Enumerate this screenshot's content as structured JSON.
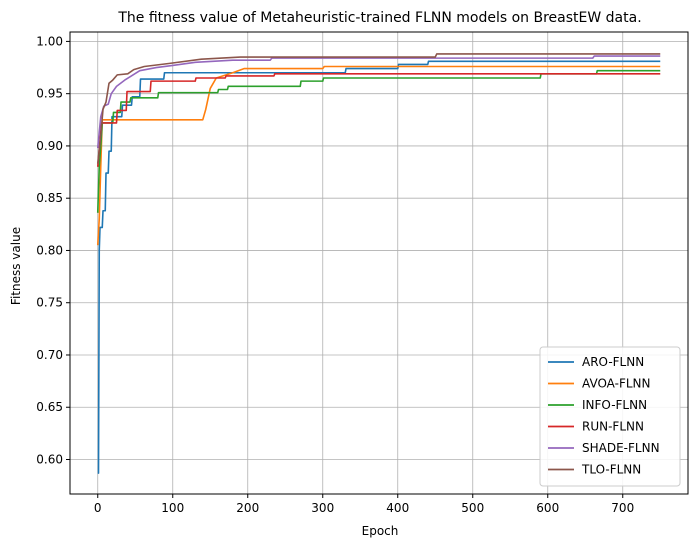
{
  "chart_data": {
    "type": "line",
    "title": "The fitness value of Metaheuristic-trained FLNN models on BreastEW data.",
    "xlabel": "Epoch",
    "ylabel": "Fitness value",
    "xlim": [
      -37,
      787
    ],
    "ylim": [
      0.567,
      1.009
    ],
    "xticks": [
      0,
      100,
      200,
      300,
      400,
      500,
      600,
      700
    ],
    "yticks": [
      0.6,
      0.65,
      0.7,
      0.75,
      0.8,
      0.85,
      0.9,
      0.95,
      1.0
    ],
    "xtick_labels": [
      "0",
      "100",
      "200",
      "300",
      "400",
      "500",
      "600",
      "700"
    ],
    "ytick_labels": [
      "0.60",
      "0.65",
      "0.70",
      "0.75",
      "0.80",
      "0.85",
      "0.90",
      "0.95",
      "1.00"
    ],
    "grid": true,
    "legend_position": "lower-right",
    "series": [
      {
        "name": "ARO-FLNN",
        "color": "#1f77b4",
        "points": [
          [
            0,
            0.587
          ],
          [
            1,
            0.587
          ],
          [
            2,
            0.8
          ],
          [
            3,
            0.822
          ],
          [
            6,
            0.822
          ],
          [
            7,
            0.838
          ],
          [
            10,
            0.838
          ],
          [
            11,
            0.874
          ],
          [
            14,
            0.874
          ],
          [
            15,
            0.895
          ],
          [
            18,
            0.895
          ],
          [
            19,
            0.928
          ],
          [
            32,
            0.928
          ],
          [
            33,
            0.939
          ],
          [
            45,
            0.939
          ],
          [
            46,
            0.947
          ],
          [
            56,
            0.947
          ],
          [
            57,
            0.964
          ],
          [
            88,
            0.964
          ],
          [
            89,
            0.97
          ],
          [
            330,
            0.97
          ],
          [
            331,
            0.974
          ],
          [
            400,
            0.974
          ],
          [
            401,
            0.978
          ],
          [
            440,
            0.978
          ],
          [
            441,
            0.981
          ],
          [
            750,
            0.981
          ]
        ]
      },
      {
        "name": "AVOA-FLNN",
        "color": "#ff7f0e",
        "points": [
          [
            0,
            0.805
          ],
          [
            2,
            0.83
          ],
          [
            4,
            0.88
          ],
          [
            6,
            0.925
          ],
          [
            140,
            0.925
          ],
          [
            144,
            0.935
          ],
          [
            150,
            0.955
          ],
          [
            158,
            0.965
          ],
          [
            180,
            0.97
          ],
          [
            195,
            0.974
          ],
          [
            300,
            0.974
          ],
          [
            302,
            0.976
          ],
          [
            750,
            0.976
          ]
        ]
      },
      {
        "name": "INFO-FLNN",
        "color": "#2ca02c",
        "points": [
          [
            0,
            0.836
          ],
          [
            2,
            0.88
          ],
          [
            4,
            0.9
          ],
          [
            6,
            0.922
          ],
          [
            20,
            0.922
          ],
          [
            21,
            0.932
          ],
          [
            30,
            0.932
          ],
          [
            31,
            0.942
          ],
          [
            43,
            0.942
          ],
          [
            44,
            0.946
          ],
          [
            80,
            0.946
          ],
          [
            81,
            0.951
          ],
          [
            160,
            0.951
          ],
          [
            161,
            0.954
          ],
          [
            173,
            0.954
          ],
          [
            174,
            0.957
          ],
          [
            270,
            0.957
          ],
          [
            271,
            0.962
          ],
          [
            300,
            0.962
          ],
          [
            301,
            0.965
          ],
          [
            590,
            0.965
          ],
          [
            591,
            0.969
          ],
          [
            665,
            0.969
          ],
          [
            666,
            0.972
          ],
          [
            750,
            0.972
          ]
        ]
      },
      {
        "name": "RUN-FLNN",
        "color": "#d62728",
        "points": [
          [
            0,
            0.88
          ],
          [
            5,
            0.922
          ],
          [
            25,
            0.922
          ],
          [
            26,
            0.934
          ],
          [
            38,
            0.934
          ],
          [
            39,
            0.952
          ],
          [
            70,
            0.952
          ],
          [
            71,
            0.962
          ],
          [
            130,
            0.962
          ],
          [
            131,
            0.965
          ],
          [
            170,
            0.965
          ],
          [
            171,
            0.967
          ],
          [
            235,
            0.967
          ],
          [
            236,
            0.969
          ],
          [
            750,
            0.969
          ]
        ]
      },
      {
        "name": "SHADE-FLNN",
        "color": "#9467bd",
        "points": [
          [
            0,
            0.898
          ],
          [
            2,
            0.913
          ],
          [
            4,
            0.928
          ],
          [
            8,
            0.938
          ],
          [
            14,
            0.94
          ],
          [
            18,
            0.95
          ],
          [
            25,
            0.957
          ],
          [
            36,
            0.963
          ],
          [
            56,
            0.972
          ],
          [
            78,
            0.975
          ],
          [
            100,
            0.977
          ],
          [
            130,
            0.98
          ],
          [
            180,
            0.982
          ],
          [
            230,
            0.982
          ],
          [
            232,
            0.984
          ],
          [
            660,
            0.984
          ],
          [
            662,
            0.986
          ],
          [
            750,
            0.986
          ]
        ]
      },
      {
        "name": "TLO-FLNN",
        "color": "#8c564b",
        "points": [
          [
            0,
            0.883
          ],
          [
            4,
            0.91
          ],
          [
            7,
            0.935
          ],
          [
            11,
            0.942
          ],
          [
            15,
            0.96
          ],
          [
            20,
            0.963
          ],
          [
            26,
            0.968
          ],
          [
            40,
            0.969
          ],
          [
            48,
            0.973
          ],
          [
            62,
            0.976
          ],
          [
            96,
            0.979
          ],
          [
            138,
            0.983
          ],
          [
            190,
            0.985
          ],
          [
            450,
            0.985
          ],
          [
            452,
            0.988
          ],
          [
            750,
            0.988
          ]
        ]
      }
    ]
  }
}
